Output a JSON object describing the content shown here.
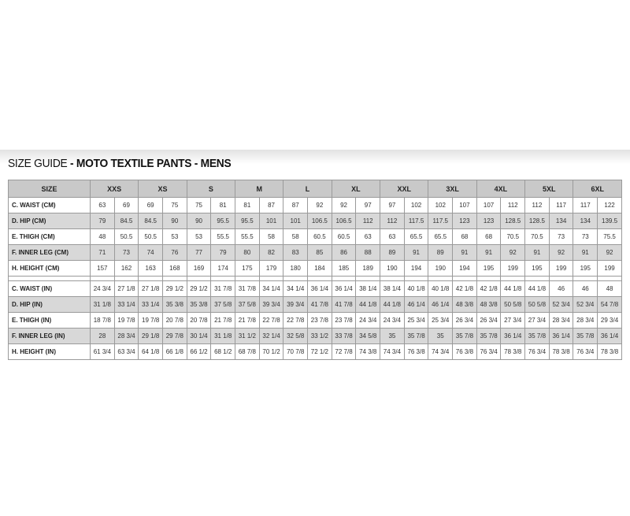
{
  "title": {
    "prefix": "SIZE GUIDE",
    "main": " - MOTO TEXTILE PANTS - MENS"
  },
  "header": {
    "label": "SIZE",
    "sizes": [
      "XXS",
      "XS",
      "S",
      "M",
      "L",
      "XL",
      "XXL",
      "3XL",
      "4XL",
      "5XL",
      "6XL"
    ]
  },
  "cm_rows": [
    {
      "label": "C. WAIST (CM)",
      "values": [
        "63",
        "69",
        "69",
        "75",
        "75",
        "81",
        "81",
        "87",
        "87",
        "92",
        "92",
        "97",
        "97",
        "102",
        "102",
        "107",
        "107",
        "112",
        "112",
        "117",
        "117",
        "122"
      ]
    },
    {
      "label": "D. HIP (CM)",
      "values": [
        "79",
        "84.5",
        "84.5",
        "90",
        "90",
        "95.5",
        "95.5",
        "101",
        "101",
        "106.5",
        "106.5",
        "112",
        "112",
        "117.5",
        "117.5",
        "123",
        "123",
        "128.5",
        "128.5",
        "134",
        "134",
        "139.5"
      ]
    },
    {
      "label": "E. THIGH (CM)",
      "values": [
        "48",
        "50.5",
        "50.5",
        "53",
        "53",
        "55.5",
        "55.5",
        "58",
        "58",
        "60.5",
        "60.5",
        "63",
        "63",
        "65.5",
        "65.5",
        "68",
        "68",
        "70.5",
        "70.5",
        "73",
        "73",
        "75.5"
      ]
    },
    {
      "label": "F. INNER LEG (CM)",
      "values": [
        "71",
        "73",
        "74",
        "76",
        "77",
        "79",
        "80",
        "82",
        "83",
        "85",
        "86",
        "88",
        "89",
        "91",
        "89",
        "91",
        "91",
        "92",
        "91",
        "92",
        "91",
        "92"
      ]
    },
    {
      "label": "H. HEIGHT (CM)",
      "values": [
        "157",
        "162",
        "163",
        "168",
        "169",
        "174",
        "175",
        "179",
        "180",
        "184",
        "185",
        "189",
        "190",
        "194",
        "190",
        "194",
        "195",
        "199",
        "195",
        "199",
        "195",
        "199"
      ]
    }
  ],
  "in_rows": [
    {
      "label": "C. WAIST (IN)",
      "values": [
        "24 3/4",
        "27 1/8",
        "27 1/8",
        "29 1/2",
        "29 1/2",
        "31 7/8",
        "31 7/8",
        "34 1/4",
        "34 1/4",
        "36 1/4",
        "36 1/4",
        "38 1/4",
        "38 1/4",
        "40 1/8",
        "40 1/8",
        "42 1/8",
        "42 1/8",
        "44 1/8",
        "44 1/8",
        "46",
        "46",
        "48"
      ]
    },
    {
      "label": "D. HIP (IN)",
      "values": [
        "31 1/8",
        "33 1/4",
        "33 1/4",
        "35 3/8",
        "35 3/8",
        "37 5/8",
        "37 5/8",
        "39 3/4",
        "39 3/4",
        "41 7/8",
        "41 7/8",
        "44 1/8",
        "44 1/8",
        "46 1/4",
        "46 1/4",
        "48 3/8",
        "48 3/8",
        "50 5/8",
        "50 5/8",
        "52 3/4",
        "52 3/4",
        "54 7/8"
      ]
    },
    {
      "label": "E. THIGH (IN)",
      "values": [
        "18 7/8",
        "19 7/8",
        "19 7/8",
        "20 7/8",
        "20 7/8",
        "21 7/8",
        "21 7/8",
        "22 7/8",
        "22 7/8",
        "23 7/8",
        "23 7/8",
        "24 3/4",
        "24 3/4",
        "25 3/4",
        "25 3/4",
        "26 3/4",
        "26 3/4",
        "27 3/4",
        "27 3/4",
        "28 3/4",
        "28 3/4",
        "29 3/4"
      ]
    },
    {
      "label": "F. INNER LEG (IN)",
      "values": [
        "28",
        "28 3/4",
        "29 1/8",
        "29 7/8",
        "30 1/4",
        "31 1/8",
        "31 1/2",
        "32 1/4",
        "32 5/8",
        "33 1/2",
        "33 7/8",
        "34 5/8",
        "35",
        "35 7/8",
        "35",
        "35 7/8",
        "35 7/8",
        "36 1/4",
        "35 7/8",
        "36 1/4",
        "35 7/8",
        "36 1/4"
      ]
    },
    {
      "label": "H. HEIGHT (IN)",
      "values": [
        "61 3/4",
        "63 3/4",
        "64 1/8",
        "66 1/8",
        "66 1/2",
        "68 1/2",
        "68 7/8",
        "70 1/2",
        "70 7/8",
        "72 1/2",
        "72 7/8",
        "74 3/8",
        "74 3/4",
        "76 3/8",
        "74 3/4",
        "76 3/8",
        "76 3/4",
        "78 3/8",
        "76 3/4",
        "78 3/8",
        "76 3/4",
        "78 3/8"
      ]
    }
  ]
}
